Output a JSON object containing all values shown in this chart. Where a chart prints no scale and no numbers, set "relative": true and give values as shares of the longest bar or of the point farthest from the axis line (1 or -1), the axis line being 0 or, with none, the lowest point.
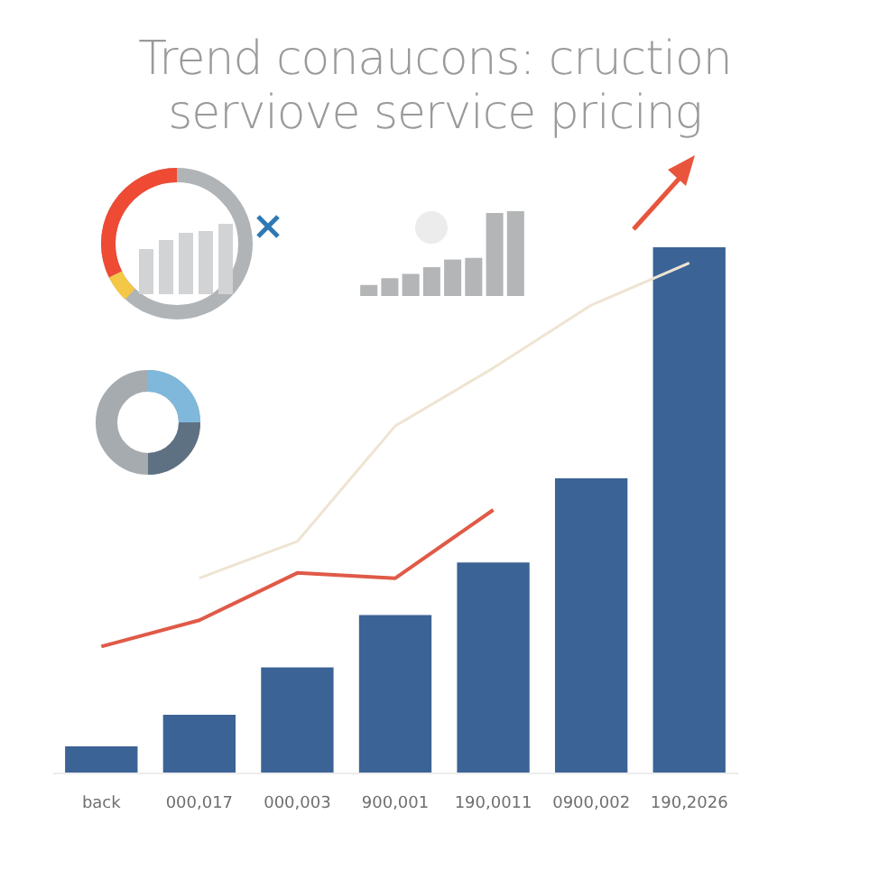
{
  "chart_data": [
    {
      "type": "bar",
      "title": "Trend conaucons: cruction",
      "subtitle": "serviove service pricing",
      "relative": true,
      "categories": [
        "back",
        "000,017",
        "000,003",
        "900,001",
        "190,0011",
        "0900,002",
        "190,2026"
      ],
      "series": [
        {
          "color": "#3b6396",
          "values": [
            0.05,
            0.11,
            0.2,
            0.3,
            0.4,
            0.56,
            1
          ]
        },
        {
          "type": "line",
          "color": "#e05a47",
          "values": [
            0.24,
            0.29,
            0.38,
            0.37,
            0.5,
            null,
            null
          ]
        },
        {
          "type": "line",
          "color": "#efe4d2",
          "values": [
            null,
            0.37,
            0.44,
            0.66,
            0.77,
            0.89,
            0.97
          ]
        }
      ],
      "grid": false
    },
    {
      "type": "bar",
      "relative": true,
      "categories": [
        null,
        null,
        null,
        null,
        null,
        null,
        null,
        null
      ],
      "series": [
        {
          "color": "#b3b5b7",
          "values": [
            0.13,
            0.21,
            0.26,
            0.34,
            0.43,
            0.45,
            0.98,
            1
          ]
        }
      ]
    }
  ]
}
